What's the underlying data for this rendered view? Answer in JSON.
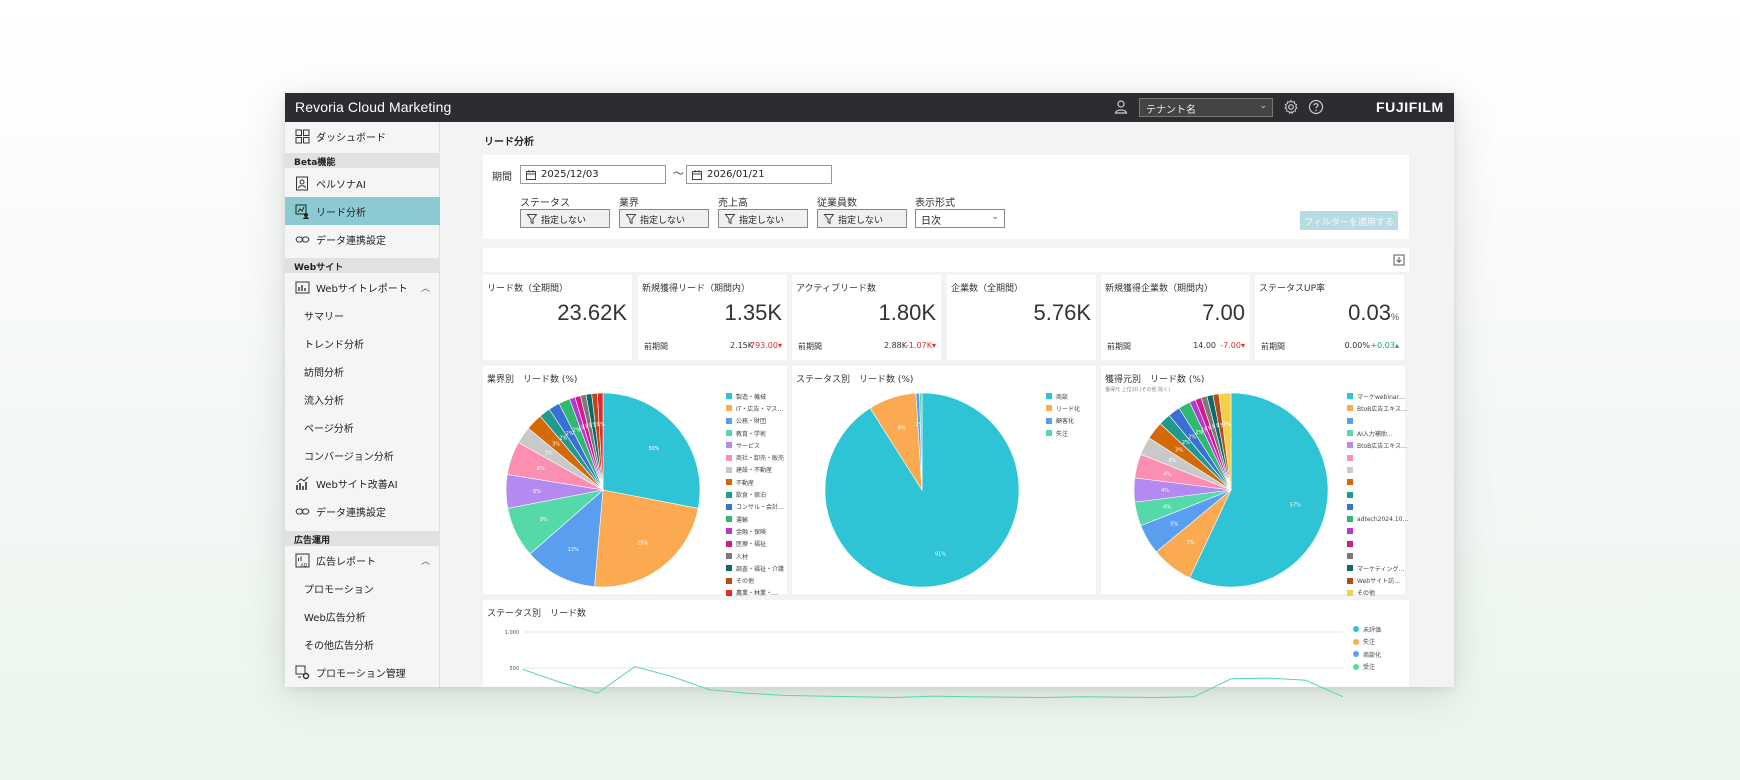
{
  "app": {
    "title": "Revoria Cloud Marketing",
    "brand": "FUJIFILM"
  },
  "header": {
    "tenant_select_value": "テナント名"
  },
  "sidebar": {
    "dashboard": "ダッシュボード",
    "section_beta": "Beta機能",
    "persona_ai": "ペルソナAI",
    "lead_analysis": "リード分析",
    "data_link_1": "データ連携設定",
    "section_web": "Webサイト",
    "web_report": "Webサイトレポート",
    "summary": "サマリー",
    "trend": "トレンド分析",
    "visit": "訪問分析",
    "inflow": "流入分析",
    "page": "ページ分析",
    "conversion": "コンバージョン分析",
    "web_improve_ai": "Webサイト改善AI",
    "data_link_2": "データ連携設定",
    "section_ads": "広告運用",
    "ad_report": "広告レポート",
    "promotion": "プロモーション",
    "web_ads": "Web広告分析",
    "other_ads": "その他広告分析",
    "promotion_mgmt": "プロモーション管理"
  },
  "page": {
    "title": "リード分析"
  },
  "filters": {
    "period_label": "期間",
    "date_from": "2025/12/03",
    "tilde": "〜",
    "date_to": "2026/01/21",
    "status_label": "ステータス",
    "industry_label": "業界",
    "sales_label": "売上高",
    "employees_label": "従業員数",
    "display_label": "表示形式",
    "status_value": "指定しない",
    "industry_value": "指定しない",
    "sales_value": "指定しない",
    "employees_value": "指定しない",
    "display_value": "日次",
    "apply_button": "フィルターを適用する"
  },
  "kpis": [
    {
      "title": "リード数（全期間）",
      "value": "23.62K",
      "unit": ""
    },
    {
      "title": "新規獲得リード（期間内）",
      "value": "1.35K",
      "unit": "",
      "prev_label": "前期間",
      "prev_value": "2.15K",
      "delta": "-793.00▾",
      "delta_dir": "neg"
    },
    {
      "title": "アクティブリード数",
      "value": "1.80K",
      "unit": "",
      "prev_label": "前期間",
      "prev_value": "2.88K",
      "delta": "-1.07K▾",
      "delta_dir": "neg"
    },
    {
      "title": "企業数（全期間）",
      "value": "5.76K",
      "unit": ""
    },
    {
      "title": "新規獲得企業数（期間内）",
      "value": "7.00",
      "unit": "",
      "prev_label": "前期間",
      "prev_value": "14.00",
      "delta": "-7.00▾",
      "delta_dir": "neg"
    },
    {
      "title": "ステータスUP率",
      "value": "0.03",
      "unit": "%",
      "prev_label": "前期間",
      "prev_value": "0.00%",
      "delta": "+0.03▴",
      "delta_dir": "pos"
    }
  ],
  "chart_data": [
    {
      "type": "pie",
      "title": "業界別　リード数 (%)",
      "labels": [
        "製造・機械",
        "IT・広告・マス…",
        "公務・財団",
        "教育・学術",
        "サービス",
        "商社・卸売・販売",
        "建設・不動産",
        "不動産",
        "飲食・宿泊",
        "コンサル・会計…",
        "運輸",
        "金融・保険",
        "医療・福祉",
        "人材",
        "調査・福祉・介護",
        "その他",
        "農業・林業・…"
      ],
      "values": [
        30,
        25,
        13,
        9,
        6,
        6,
        3,
        3,
        2,
        2,
        2,
        1,
        1,
        1,
        1,
        1,
        1
      ],
      "slice_labels": [
        "30%",
        "25%",
        "13%",
        "9%",
        "6%",
        "6%",
        "3%",
        "3%",
        "2%",
        "2%",
        "2%",
        "1%",
        "1%",
        "1%",
        "1%",
        "1%",
        "1%"
      ],
      "colors": [
        "#2ec4d6",
        "#fbaa52",
        "#5a9ef0",
        "#56d9a8",
        "#b48af0",
        "#fb8fb2",
        "#c9c9c9",
        "#d4690a",
        "#1f9b8e",
        "#3a6fd4",
        "#2fb86e",
        "#b23ad4",
        "#d41a8a",
        "#7a7a7a",
        "#0a6b6b",
        "#b84a1a",
        "#e02b2b"
      ]
    },
    {
      "type": "pie",
      "title": "ステータス別　リード数 (%)",
      "labels": [
        "商談",
        "リード化",
        "顧客化",
        "失注"
      ],
      "values": [
        91,
        8,
        0.6,
        0.4
      ],
      "slice_labels": [
        "91%",
        "8%",
        "1%",
        ""
      ],
      "colors": [
        "#2ec4d6",
        "#fbaa52",
        "#5a9ef0",
        "#56d9a8"
      ]
    },
    {
      "type": "pie",
      "title": "獲得元別　リード数 (%)",
      "subtitle": "獲得元 上位20 (その他 除く)",
      "labels": [
        "マーケwebinar…",
        "BtoB広告エキス…",
        "",
        "AI入力補助…",
        "BtoB広告エキス…",
        "",
        "",
        "",
        "",
        "",
        "adtech2024.10…",
        "",
        "",
        "",
        "マーケティング…",
        "Webサイト訪…",
        "その他"
      ],
      "values": [
        57,
        7,
        5,
        4,
        4,
        4,
        3,
        3,
        2,
        2,
        2,
        1,
        1,
        1,
        1,
        1,
        2
      ],
      "slice_labels": [
        "57%",
        "7%",
        "5%",
        "4%",
        "4%",
        "4%",
        "3%",
        "3%",
        "2%",
        "2%",
        "2%",
        "1%",
        "1%",
        "1%",
        "1%",
        "1%",
        "2%"
      ],
      "colors": [
        "#2ec4d6",
        "#fbaa52",
        "#5a9ef0",
        "#56d9a8",
        "#b48af0",
        "#fb8fb2",
        "#c9c9c9",
        "#d4690a",
        "#1f9b8e",
        "#3a6fd4",
        "#2fb86e",
        "#b23ad4",
        "#d41a8a",
        "#7a7a7a",
        "#0a6b6b",
        "#b84a1a",
        "#f2d04a"
      ]
    },
    {
      "type": "line",
      "title": "ステータス別　リード数",
      "y_ticks": [
        "1,000",
        "500"
      ],
      "ylim": [
        0,
        1000
      ],
      "series": [
        {
          "name": "未評価",
          "color": "#2ec4d6",
          "values": []
        },
        {
          "name": "失注",
          "color": "#fbaa52",
          "values": []
        },
        {
          "name": "商談化",
          "color": "#5a9ef0",
          "values": []
        },
        {
          "name": "受注",
          "color": "#56d9a8",
          "values": [
            480,
            300,
            150,
            520,
            380,
            200,
            150,
            120,
            110,
            100,
            90,
            110,
            100,
            95,
            90,
            100,
            95,
            90,
            100,
            350,
            360,
            330,
            100
          ]
        }
      ]
    }
  ]
}
